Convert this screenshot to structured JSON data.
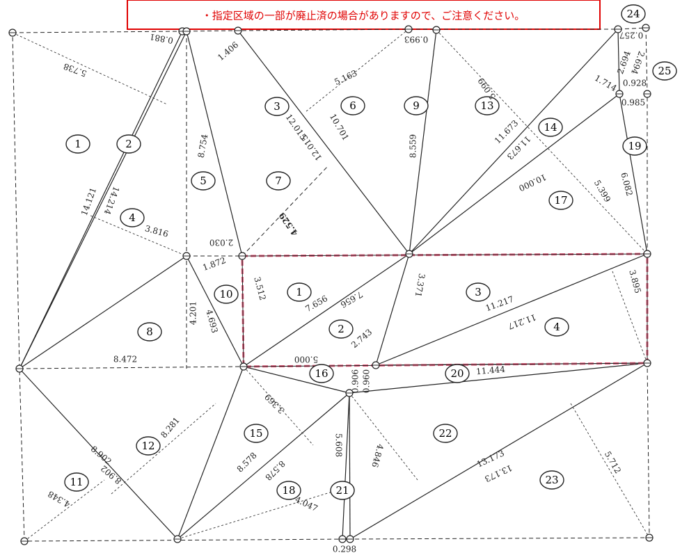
{
  "notice": "・指定区域の一部が廃止済の場合がありますので、ご注意ください。",
  "regions": [
    "1",
    "2",
    "3",
    "4",
    "5",
    "6",
    "7",
    "8",
    "9",
    "10",
    "11",
    "12",
    "13",
    "14",
    "15",
    "16",
    "17",
    "18",
    "19",
    "20",
    "21",
    "22",
    "23",
    "24",
    "25",
    "1",
    "2",
    "3",
    "4"
  ],
  "measurements": [
    "5.738",
    "0.881",
    "1.406",
    "5.163",
    "0.993",
    "5.099",
    "12.015",
    "12.015",
    "10.701",
    "8.559",
    "8.754",
    "14.121",
    "14.214",
    "3.816",
    "2.030",
    "1.872",
    "4.529",
    "3.512",
    "7.656",
    "7.656",
    "2.743",
    "3.371",
    "11.217",
    "11.217",
    "3.895",
    "4.201",
    "4.693",
    "8.472",
    "5.000",
    "0.960",
    "11.444",
    "3.369",
    "8.281",
    "8.902",
    "8.902",
    "4.348",
    "8.578",
    "8.578",
    "4.047",
    "5.608",
    "4.846",
    "13.173",
    "13.173",
    "5.712",
    "0.298",
    "11.673",
    "11.673",
    "10.000",
    "5.399",
    "6.082",
    "1.714",
    "2.694",
    "2.694",
    "0.928",
    "0.985",
    "0.257",
    "0.906"
  ]
}
